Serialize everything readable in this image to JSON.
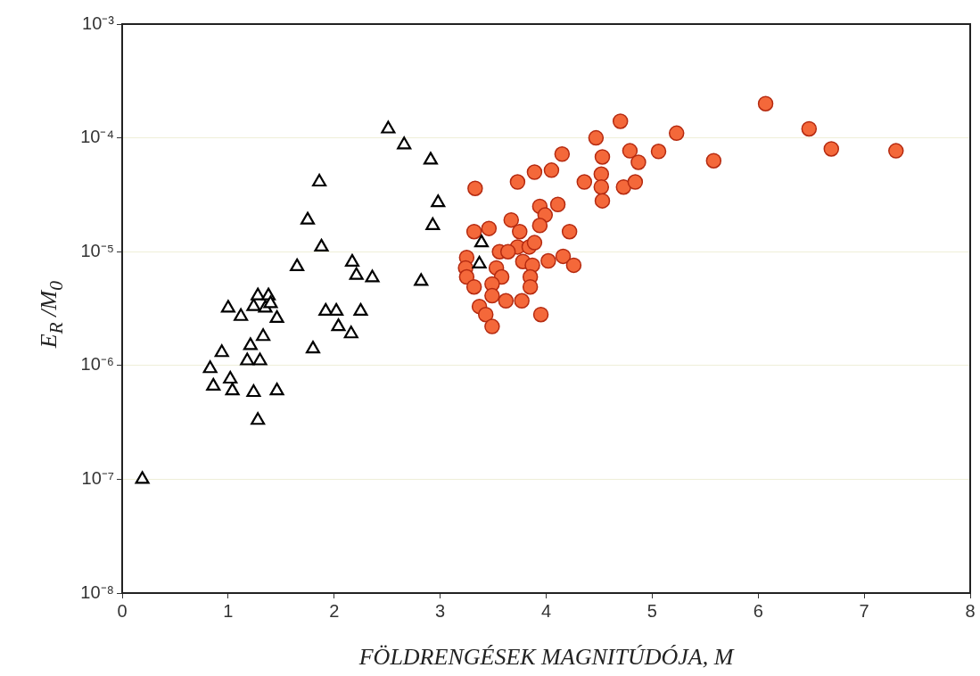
{
  "chart_data": {
    "type": "scatter",
    "xlabel": "FÖLDRENGÉSEK MAGNITÚDÓJA, M",
    "ylabel": "E$_{R}$ /M$_{0}$",
    "log": "y",
    "grid": "y",
    "legend": false,
    "xlim": [
      0,
      8
    ],
    "xticks": [
      0,
      1,
      2,
      3,
      4,
      5,
      6,
      7,
      8
    ],
    "ylim": [
      1e-08,
      0.001
    ],
    "yticks": [
      {
        "value": 1e-08,
        "label": "10⁻⁸"
      },
      {
        "value": 1e-07,
        "label": "10⁻⁷"
      },
      {
        "value": 1e-06,
        "label": "10⁻⁶"
      },
      {
        "value": 1e-05,
        "label": "10⁻⁵"
      },
      {
        "value": 0.0001,
        "label": "10⁻⁴"
      },
      {
        "value": 0.001,
        "label": "10⁻³"
      }
    ],
    "series": [
      {
        "marker": "triangle",
        "color": "#000000",
        "x": [
          0.19,
          0.83,
          0.86,
          0.94,
          1.0,
          1.02,
          1.04,
          1.12,
          1.18,
          1.21,
          1.24,
          1.24,
          1.28,
          1.28,
          1.3,
          1.33,
          1.35,
          1.38,
          1.4,
          1.46,
          1.46,
          1.65,
          1.75,
          1.8,
          1.86,
          1.88,
          1.92,
          2.02,
          2.04,
          2.17,
          2.16,
          2.21,
          2.25,
          2.36,
          2.51,
          2.66,
          2.82,
          2.91,
          2.98,
          2.93,
          3.39,
          3.37
        ],
        "values": [
          1e-07,
          9.4e-07,
          6.6e-07,
          1.3e-06,
          3.2e-06,
          7.6e-07,
          6e-07,
          2.7e-06,
          1.1e-06,
          1.5e-06,
          3.3e-06,
          5.8e-07,
          4.1e-06,
          3.3e-07,
          1.1e-06,
          1.8e-06,
          3.2e-06,
          4.1e-06,
          3.5e-06,
          2.6e-06,
          6e-07,
          7.4e-06,
          1.9e-05,
          1.4e-06,
          4.1e-05,
          1.1e-05,
          3e-06,
          3e-06,
          2.2e-06,
          8.1e-06,
          1.9e-06,
          6.2e-06,
          3e-06,
          5.9e-06,
          0.00012,
          8.7e-05,
          5.5e-06,
          6.4e-05,
          2.7e-05,
          1.7e-05,
          1.2e-05,
          7.8e-06
        ]
      },
      {
        "marker": "circle",
        "color": "#f4683a",
        "x": [
          3.33,
          3.73,
          3.89,
          4.05,
          4.15,
          4.36,
          4.47,
          4.53,
          4.52,
          4.52,
          4.53,
          4.7,
          4.79,
          4.87,
          4.73,
          4.84,
          5.06,
          5.23,
          5.58,
          6.07,
          6.48,
          6.69,
          7.3,
          3.94,
          4.11,
          3.99,
          3.94,
          4.22,
          3.32,
          3.46,
          3.67,
          3.75,
          3.73,
          3.84,
          3.89,
          4.02,
          4.16,
          4.26,
          3.25,
          3.24,
          3.78,
          3.87,
          3.53,
          3.25,
          3.58,
          3.85,
          3.85,
          3.32,
          3.49,
          3.49,
          3.62,
          3.77,
          3.37,
          3.43,
          3.95,
          3.49,
          3.56,
          3.64
        ],
        "values": [
          3.6e-05,
          4.1e-05,
          5e-05,
          5.2e-05,
          7.2e-05,
          4.1e-05,
          0.0001,
          6.8e-05,
          4.8e-05,
          3.7e-05,
          2.8e-05,
          0.00014,
          7.7e-05,
          6.1e-05,
          3.7e-05,
          4.1e-05,
          7.6e-05,
          0.00011,
          6.3e-05,
          0.0002,
          0.00012,
          8e-05,
          7.7e-05,
          2.5e-05,
          2.6e-05,
          2.1e-05,
          1.7e-05,
          1.5e-05,
          1.5e-05,
          1.6e-05,
          1.9e-05,
          1.5e-05,
          1.1e-05,
          1.1e-05,
          1.2e-05,
          8.3e-06,
          9.1e-06,
          7.6e-06,
          8.9e-06,
          7.2e-06,
          8.2e-06,
          7.6e-06,
          7.2e-06,
          6e-06,
          6e-06,
          6e-06,
          4.9e-06,
          4.9e-06,
          5.2e-06,
          4.1e-06,
          3.7e-06,
          3.7e-06,
          3.3e-06,
          2.8e-06,
          2.8e-06,
          2.2e-06,
          1e-05,
          1e-05
        ]
      }
    ]
  }
}
